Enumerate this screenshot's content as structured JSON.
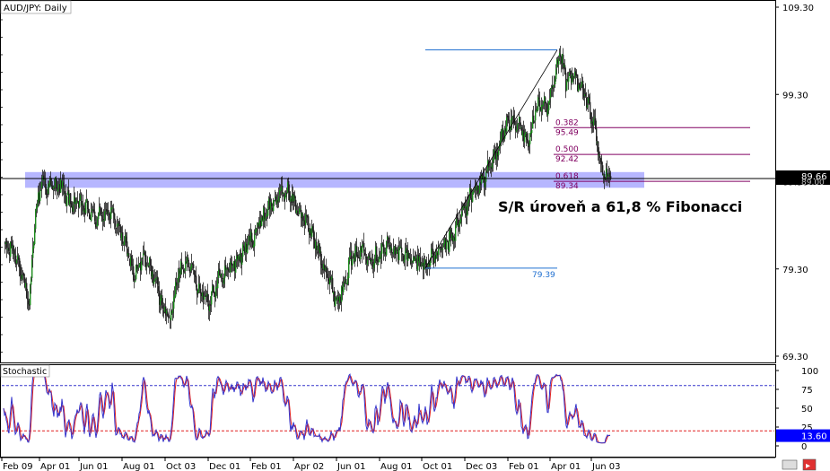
{
  "title": "AUD/JPY: Daily",
  "annotation": "S/R úroveň a 61,8 % Fibonacci",
  "colors": {
    "up_candle": "#1a8a1a",
    "down_candle": "#222222",
    "fib_line": "#800060",
    "fib_label": "#800060",
    "sr_zone": "#7a7aff",
    "stoch_k": "#3333cc",
    "stoch_d": "#e02020",
    "level_80": "#3333cc",
    "level_20": "#e02020",
    "current_price_bg": "#000000",
    "stoch_value_bg": "#0000ff"
  },
  "price_axis": {
    "ticks": [
      "109.30",
      "99.30",
      "89.30",
      "79.30",
      "69.30"
    ],
    "current": "89.66",
    "current_hidden": "89.00"
  },
  "stochastic": {
    "label": "Stochastic",
    "ticks": [
      "100",
      "75",
      "50",
      "25",
      "0"
    ],
    "current": "13.60"
  },
  "x_axis_labels": [
    "Feb 09",
    "Apr 01",
    "Jun 01",
    "Aug 01",
    "Oct 03",
    "Dec 01",
    "Feb 01",
    "Apr 02",
    "Jun 01",
    "Aug 01",
    "Oct 01",
    "Dec 03",
    "Feb 01",
    "Apr 01",
    "Jun 03"
  ],
  "fib_levels": [
    {
      "ratio": "0.382",
      "price": "95.49"
    },
    {
      "ratio": "0.500",
      "price": "92.42"
    },
    {
      "ratio": "0.618",
      "price": "89.34"
    }
  ],
  "swing_low_label": "79.39",
  "chart_data": {
    "type": "candlestick",
    "title": "AUD/JPY: Daily",
    "ylim": [
      68.0,
      110.0
    ],
    "y_ticks": [
      109.3,
      99.3,
      89.3,
      79.3,
      69.3
    ],
    "swing_high": 104.4,
    "swing_low": 79.39,
    "fib_retracements": [
      {
        "ratio": 0.382,
        "price": 95.49
      },
      {
        "ratio": 0.5,
        "price": 92.42
      },
      {
        "ratio": 0.618,
        "price": 89.34
      }
    ],
    "sr_zone": [
      88.6,
      90.4
    ],
    "current_price": 89.66,
    "close_path": [
      [
        0,
        81.8
      ],
      [
        10,
        81.5
      ],
      [
        20,
        79.0
      ],
      [
        28,
        74.5
      ],
      [
        34,
        85.0
      ],
      [
        42,
        89.5
      ],
      [
        50,
        88.5
      ],
      [
        62,
        89.0
      ],
      [
        72,
        87.0
      ],
      [
        88,
        86.5
      ],
      [
        102,
        85.0
      ],
      [
        115,
        86.0
      ],
      [
        125,
        84.8
      ],
      [
        135,
        82.0
      ],
      [
        145,
        78.5
      ],
      [
        155,
        80.5
      ],
      [
        165,
        79.0
      ],
      [
        175,
        75.5
      ],
      [
        185,
        73.5
      ],
      [
        195,
        79.0
      ],
      [
        205,
        80.5
      ],
      [
        215,
        77.5
      ],
      [
        228,
        75.5
      ],
      [
        238,
        78.0
      ],
      [
        252,
        79.5
      ],
      [
        265,
        81.0
      ],
      [
        280,
        83.5
      ],
      [
        292,
        86.0
      ],
      [
        305,
        87.5
      ],
      [
        315,
        88.3
      ],
      [
        325,
        86.5
      ],
      [
        340,
        84.0
      ],
      [
        352,
        81.0
      ],
      [
        362,
        78.0
      ],
      [
        372,
        75.5
      ],
      [
        385,
        80.0
      ],
      [
        398,
        81.5
      ],
      [
        412,
        80.5
      ],
      [
        428,
        82.0
      ],
      [
        442,
        81.0
      ],
      [
        455,
        80.5
      ],
      [
        468,
        79.8
      ],
      [
        478,
        80.5
      ],
      [
        492,
        82.0
      ],
      [
        502,
        83.5
      ],
      [
        512,
        86.0
      ],
      [
        522,
        88.0
      ],
      [
        534,
        89.5
      ],
      [
        545,
        91.8
      ],
      [
        556,
        95.0
      ],
      [
        565,
        96.0
      ],
      [
        575,
        95.5
      ],
      [
        585,
        94.0
      ],
      [
        595,
        98.5
      ],
      [
        605,
        97.5
      ],
      [
        612,
        100.0
      ],
      [
        620,
        104.2
      ],
      [
        626,
        100.5
      ],
      [
        634,
        101.5
      ],
      [
        642,
        100.0
      ],
      [
        650,
        98.5
      ],
      [
        658,
        95.5
      ],
      [
        666,
        90.5
      ],
      [
        672,
        89.8
      ],
      [
        676,
        89.66
      ]
    ]
  }
}
